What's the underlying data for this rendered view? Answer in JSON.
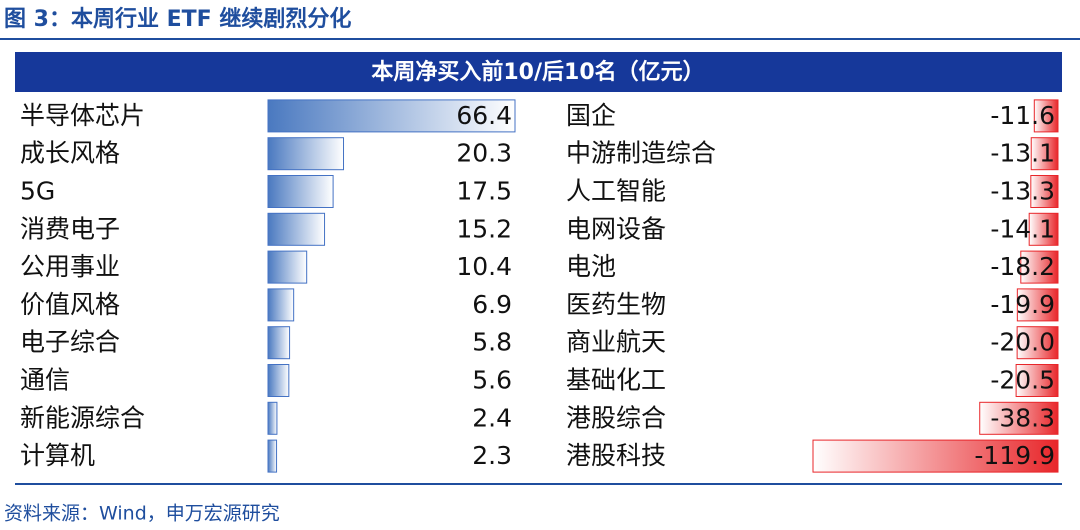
{
  "header": {
    "title": "图 3：本周行业 ETF 继续剧烈分化"
  },
  "table": {
    "caption": "本周净买入前10/后10名（亿元）",
    "left": [
      {
        "name": "半导体芯片",
        "value": 66.4
      },
      {
        "name": "成长风格",
        "value": 20.3
      },
      {
        "name": "5G",
        "value": 17.5
      },
      {
        "name": "消费电子",
        "value": 15.2
      },
      {
        "name": "公用事业",
        "value": 10.4
      },
      {
        "name": "价值风格",
        "value": 6.9
      },
      {
        "name": "电子综合",
        "value": 5.8
      },
      {
        "name": "通信",
        "value": 5.6
      },
      {
        "name": "新能源综合",
        "value": 2.4
      },
      {
        "name": "计算机",
        "value": 2.3
      }
    ],
    "right": [
      {
        "name": "国企",
        "value": -11.6
      },
      {
        "name": "中游制造综合",
        "value": -13.1
      },
      {
        "name": "人工智能",
        "value": -13.3
      },
      {
        "name": "电网设备",
        "value": -14.1
      },
      {
        "name": "电池",
        "value": -18.2
      },
      {
        "name": "医药生物",
        "value": -19.9
      },
      {
        "name": "商业航天",
        "value": -20,
        "label": "-20.0"
      },
      {
        "name": "基础化工",
        "value": -20.5
      },
      {
        "name": "港股综合",
        "value": -38.3
      },
      {
        "name": "港股科技",
        "value": -119.9
      }
    ]
  },
  "footer": {
    "source": "资料来源：Wind，申万宏源研究"
  }
}
